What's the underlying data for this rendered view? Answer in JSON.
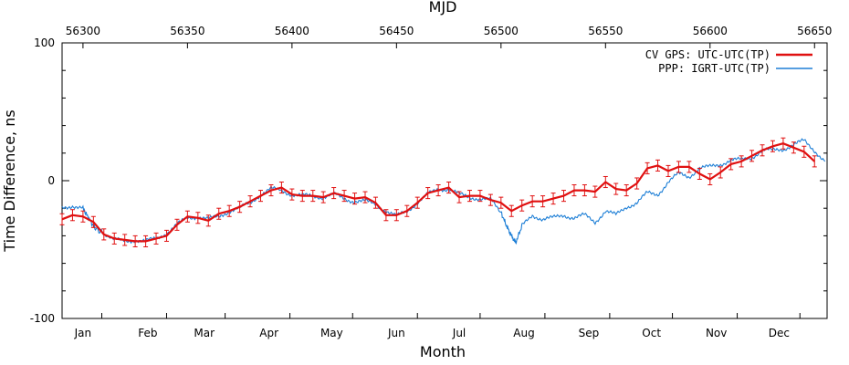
{
  "chart_data": {
    "type": "line",
    "title": "",
    "top_axis": {
      "label": "MJD",
      "ticks": [
        56300,
        56350,
        56400,
        56450,
        56500,
        56550,
        56600,
        56650
      ],
      "range": [
        56290,
        56656
      ]
    },
    "xlabel": "Month",
    "ylabel": "Time Difference, ns",
    "ylim": [
      -100,
      100
    ],
    "yticks": [
      -100,
      0,
      100
    ],
    "month_labels": [
      {
        "label": "Jan",
        "mjd": 56300
      },
      {
        "label": "Feb",
        "mjd": 56331
      },
      {
        "label": "Mar",
        "mjd": 56358
      },
      {
        "label": "Apr",
        "mjd": 56389
      },
      {
        "label": "May",
        "mjd": 56419
      },
      {
        "label": "Jun",
        "mjd": 56450
      },
      {
        "label": "Jul",
        "mjd": 56480
      },
      {
        "label": "Aug",
        "mjd": 56511
      },
      {
        "label": "Sep",
        "mjd": 56542
      },
      {
        "label": "Oct",
        "mjd": 56572
      },
      {
        "label": "Nov",
        "mjd": 56603
      },
      {
        "label": "Dec",
        "mjd": 56633
      }
    ],
    "month_boundaries": [
      56309,
      56340,
      56368,
      56399,
      56429,
      56460,
      56490,
      56521,
      56552,
      56582,
      56613,
      56643
    ],
    "legend_position": "top-right",
    "grid": false,
    "series": [
      {
        "name": "CV GPS: UTC-UTC(TP)",
        "color": "#e01010",
        "style": "line+errorbars",
        "error": 4,
        "x": [
          56290,
          56295,
          56300,
          56305,
          56310,
          56315,
          56320,
          56325,
          56330,
          56335,
          56340,
          56345,
          56350,
          56355,
          56360,
          56365,
          56370,
          56375,
          56380,
          56385,
          56390,
          56395,
          56400,
          56405,
          56410,
          56415,
          56420,
          56425,
          56430,
          56435,
          56440,
          56445,
          56450,
          56455,
          56460,
          56465,
          56470,
          56475,
          56480,
          56485,
          56490,
          56495,
          56500,
          56505,
          56510,
          56515,
          56520,
          56525,
          56530,
          56535,
          56540,
          56545,
          56550,
          56555,
          56560,
          56565,
          56570,
          56575,
          56580,
          56585,
          56590,
          56595,
          56600,
          56605,
          56610,
          56615,
          56620,
          56625,
          56630,
          56635,
          56640,
          56645,
          56650
        ],
        "y": [
          -28,
          -25,
          -26,
          -30,
          -39,
          -42,
          -43,
          -44,
          -44,
          -42,
          -40,
          -32,
          -26,
          -27,
          -29,
          -24,
          -22,
          -19,
          -15,
          -11,
          -7,
          -5,
          -10,
          -11,
          -11,
          -12,
          -9,
          -11,
          -13,
          -12,
          -16,
          -25,
          -25,
          -22,
          -16,
          -9,
          -7,
          -5,
          -12,
          -11,
          -11,
          -14,
          -16,
          -22,
          -18,
          -15,
          -15,
          -13,
          -11,
          -7,
          -7,
          -8,
          -1,
          -6,
          -7,
          -2,
          9,
          11,
          7,
          10,
          10,
          5,
          1,
          6,
          12,
          14,
          18,
          22,
          25,
          27,
          24,
          21,
          14
        ]
      },
      {
        "name": "PPP: IGRT-UTC(TP)",
        "color": "#1e7fd6",
        "style": "line",
        "x": [
          56290,
          56295,
          56300,
          56303,
          56306,
          56310,
          56315,
          56320,
          56325,
          56330,
          56335,
          56340,
          56345,
          56350,
          56355,
          56360,
          56365,
          56370,
          56375,
          56380,
          56385,
          56390,
          56395,
          56400,
          56405,
          56410,
          56415,
          56420,
          56425,
          56430,
          56435,
          56440,
          56445,
          56450,
          56455,
          56460,
          56465,
          56470,
          56475,
          56480,
          56485,
          56490,
          56495,
          56500,
          56503,
          56505,
          56507,
          56510,
          56515,
          56520,
          56525,
          56530,
          56535,
          56540,
          56545,
          56550,
          56555,
          56560,
          56565,
          56570,
          56575,
          56580,
          56585,
          56590,
          56595,
          56600,
          56605,
          56610,
          56615,
          56620,
          56625,
          56630,
          56635,
          56640,
          56645,
          56650,
          56655
        ],
        "y": [
          -20,
          -18,
          -20,
          -28,
          -35,
          -38,
          -43,
          -44,
          -43,
          -44,
          -42,
          -38,
          -32,
          -27,
          -26,
          -28,
          -26,
          -22,
          -20,
          -16,
          -10,
          -6,
          -7,
          -10,
          -11,
          -11,
          -12,
          -10,
          -13,
          -15,
          -15,
          -17,
          -22,
          -26,
          -22,
          -16,
          -10,
          -6,
          -6,
          -10,
          -12,
          -13,
          -14,
          -23,
          -34,
          -40,
          -45,
          -33,
          -25,
          -28,
          -27,
          -25,
          -27,
          -25,
          -30,
          -22,
          -25,
          -19,
          -16,
          -9,
          -10,
          -1,
          5,
          3,
          9,
          10,
          12,
          15,
          15,
          17,
          22,
          22,
          23,
          26,
          29,
          22,
          14
        ]
      }
    ]
  }
}
